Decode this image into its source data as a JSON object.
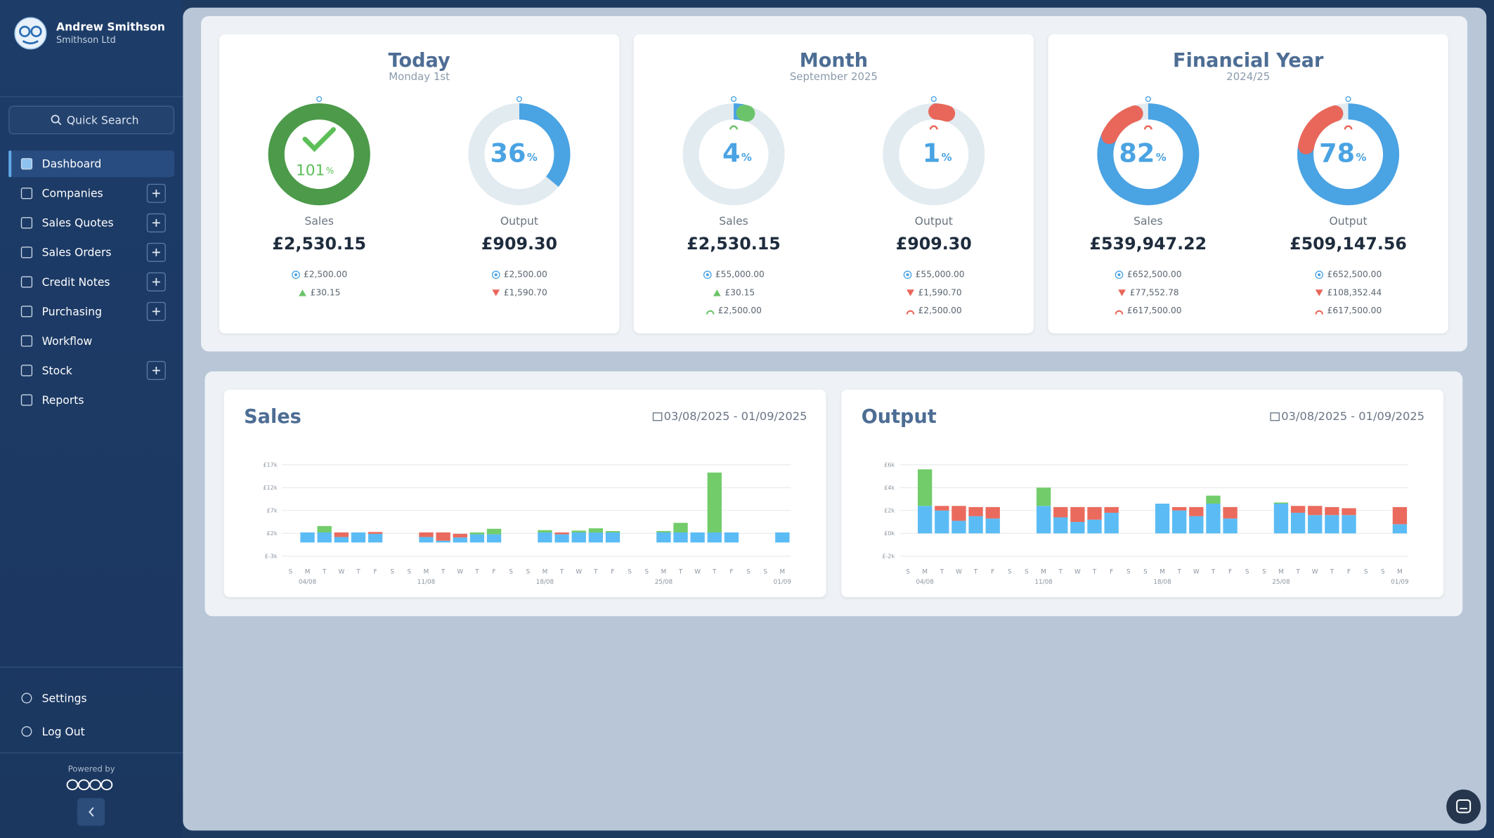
{
  "sidebar": {
    "user": {
      "name": "Andrew Smithson",
      "company": "Smithson Ltd"
    },
    "search": "Quick Search",
    "nav": [
      {
        "label": "Dashboard",
        "add": false
      },
      {
        "label": "Companies",
        "add": true
      },
      {
        "label": "Sales Quotes",
        "add": true
      },
      {
        "label": "Sales Orders",
        "add": true
      },
      {
        "label": "Credit Notes",
        "add": true
      },
      {
        "label": "Purchasing",
        "add": true
      },
      {
        "label": "Workflow",
        "add": false
      },
      {
        "label": "Stock",
        "add": true
      },
      {
        "label": "Reports",
        "add": false
      }
    ],
    "footer_nav": [
      "Settings",
      "Log Out"
    ],
    "powered_by": "Powered by"
  },
  "summary": [
    {
      "title": "Today",
      "subtitle": "Monday 1st",
      "gauges": [
        {
          "label": "Sales",
          "percent": 101,
          "unit": "%",
          "color": "#4c9a4a",
          "value": "£2,530.15",
          "target": "£2,500.00",
          "difference": "£30.15",
          "trend": "up"
        },
        {
          "label": "Output",
          "percent": 36,
          "unit": "%",
          "color": "#4aa3e3",
          "value": "£909.30",
          "target": "£2,500.00",
          "difference": "£1,590.70",
          "trend": "down"
        }
      ]
    },
    {
      "title": "Month",
      "subtitle": "September 2025",
      "gauges": [
        {
          "label": "Sales",
          "percent": 4,
          "unit": "%",
          "color": "#4aa3e3",
          "pace_percent": 5,
          "value": "£2,530.15",
          "target": "£55,000.00",
          "difference": "£30.15",
          "trend": "up",
          "pace": "£2,500.00"
        },
        {
          "label": "Output",
          "percent": 1,
          "unit": "%",
          "color": "#4aa3e3",
          "pace_percent": 5,
          "value": "£909.30",
          "target": "£55,000.00",
          "difference": "£1,590.70",
          "trend": "down",
          "pace": "£2,500.00"
        }
      ]
    },
    {
      "title": "Financial Year",
      "subtitle": "2024/25",
      "gauges": [
        {
          "label": "Sales",
          "percent": 82,
          "unit": "%",
          "color": "#4aa3e3",
          "pace_percent": 95,
          "value": "£539,947.22",
          "target": "£652,500.00",
          "difference": "£77,552.78",
          "trend": "down",
          "pace": "£617,500.00"
        },
        {
          "label": "Output",
          "percent": 78,
          "unit": "%",
          "color": "#4aa3e3",
          "pace_percent": 95,
          "value": "£509,147.56",
          "target": "£652,500.00",
          "difference": "£108,352.44",
          "trend": "down",
          "pace": "£617,500.00"
        }
      ]
    }
  ],
  "charts": [
    {
      "type": "bar",
      "title": "Sales",
      "date_range": "03/08/2025 - 01/09/2025",
      "categories": [
        "S",
        "M",
        "T",
        "W",
        "T",
        "F",
        "S",
        "S",
        "M",
        "T",
        "W",
        "T",
        "F",
        "S",
        "S",
        "M",
        "T",
        "W",
        "T",
        "F",
        "S",
        "S",
        "M",
        "T",
        "W",
        "T",
        "F",
        "S",
        "S",
        "M"
      ],
      "dates": [
        null,
        "04/08",
        null,
        null,
        null,
        null,
        null,
        null,
        "11/08",
        null,
        null,
        null,
        null,
        null,
        null,
        "18/08",
        null,
        null,
        null,
        null,
        null,
        null,
        "25/08",
        null,
        null,
        null,
        null,
        null,
        null,
        "01/09"
      ],
      "ylim": [
        -3000,
        17000
      ],
      "yticks": [
        {
          "value": -3000,
          "label": "£-3k"
        },
        {
          "value": 2000,
          "label": "£2k"
        },
        {
          "value": 7000,
          "label": "£7k"
        },
        {
          "value": 12000,
          "label": "£12k"
        },
        {
          "value": 17000,
          "label": "£17k"
        }
      ],
      "grid": true,
      "series": [
        {
          "color": "#5bbcf5",
          "values": [
            0,
            2200,
            2200,
            1200,
            2200,
            1900,
            0,
            0,
            1200,
            400,
            1100,
            1800,
            1800,
            0,
            0,
            2200,
            1800,
            2200,
            2200,
            2200,
            0,
            0,
            2200,
            2200,
            2200,
            2200,
            2200,
            0,
            0,
            2200
          ]
        },
        {
          "color": "#72cc6a",
          "values": [
            0,
            0,
            1400,
            0,
            0,
            0,
            0,
            0,
            0,
            0,
            0,
            400,
            1200,
            0,
            0,
            500,
            0,
            400,
            900,
            300,
            0,
            0,
            300,
            2100,
            0,
            13100,
            0,
            0,
            0,
            0
          ]
        },
        {
          "color": "#ea6b5d",
          "values": [
            0,
            0,
            0,
            1000,
            0,
            400,
            0,
            0,
            1000,
            1800,
            800,
            0,
            0,
            0,
            0,
            0,
            400,
            0,
            0,
            0,
            0,
            0,
            0,
            0,
            0,
            0,
            0,
            0,
            0,
            0
          ]
        }
      ]
    },
    {
      "type": "bar",
      "title": "Output",
      "date_range": "03/08/2025 - 01/09/2025",
      "categories": [
        "S",
        "M",
        "T",
        "W",
        "T",
        "F",
        "S",
        "S",
        "M",
        "T",
        "W",
        "T",
        "F",
        "S",
        "S",
        "M",
        "T",
        "W",
        "T",
        "F",
        "S",
        "S",
        "M",
        "T",
        "W",
        "T",
        "F",
        "S",
        "S",
        "M"
      ],
      "dates": [
        null,
        "04/08",
        null,
        null,
        null,
        null,
        null,
        null,
        "11/08",
        null,
        null,
        null,
        null,
        null,
        null,
        "18/08",
        null,
        null,
        null,
        null,
        null,
        null,
        "25/08",
        null,
        null,
        null,
        null,
        null,
        null,
        "01/09"
      ],
      "ylim": [
        -2000,
        6000
      ],
      "yticks": [
        {
          "value": -2000,
          "label": "£-2k"
        },
        {
          "value": 0,
          "label": "£0k"
        },
        {
          "value": 2000,
          "label": "£2k"
        },
        {
          "value": 4000,
          "label": "£4k"
        },
        {
          "value": 6000,
          "label": "£6k"
        }
      ],
      "grid": true,
      "series": [
        {
          "color": "#5bbcf5",
          "values": [
            0,
            2400,
            2000,
            1100,
            1500,
            1300,
            0,
            0,
            2400,
            1400,
            1000,
            1200,
            1800,
            0,
            0,
            2600,
            2000,
            1500,
            2600,
            1300,
            0,
            0,
            2600,
            1800,
            1600,
            1600,
            1600,
            0,
            0,
            800
          ]
        },
        {
          "color": "#72cc6a",
          "values": [
            0,
            3200,
            0,
            0,
            0,
            0,
            0,
            0,
            1600,
            0,
            0,
            0,
            0,
            0,
            0,
            0,
            0,
            0,
            700,
            0,
            0,
            0,
            100,
            0,
            0,
            0,
            0,
            0,
            0,
            0
          ]
        },
        {
          "color": "#ea6b5d",
          "values": [
            0,
            0,
            400,
            1300,
            800,
            1000,
            0,
            0,
            0,
            900,
            1300,
            1100,
            500,
            0,
            0,
            0,
            300,
            800,
            0,
            1000,
            0,
            0,
            0,
            600,
            800,
            700,
            600,
            0,
            0,
            1500
          ]
        }
      ]
    }
  ]
}
